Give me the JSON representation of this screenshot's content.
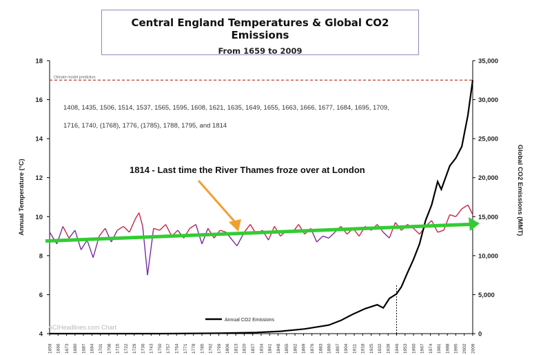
{
  "header": {
    "title": "Central England Temperatures & Global CO2 Emissions",
    "subtitle": "From 1659 to 2009"
  },
  "chart_data": {
    "type": "line",
    "title": "Central England Temperatures & Global CO2 Emissions",
    "subtitle": "From 1659 to 2009",
    "ylabel": "Annual Temperature (°C)",
    "y2label": "Global CO2 Emissions (MMT)",
    "ylim": [
      4,
      18
    ],
    "y2lim": [
      0,
      35000
    ],
    "yticks": [
      4,
      6,
      8,
      10,
      12,
      14,
      16,
      18
    ],
    "y2ticks": [
      "0",
      "5,000",
      "10,000",
      "15,000",
      "20,000",
      "25,000",
      "30,000",
      "35,000"
    ],
    "xlim": [
      1659,
      2009
    ],
    "xticks": [
      "1659",
      "1666",
      "1673",
      "1680",
      "1687",
      "1694",
      "1701",
      "1708",
      "1715",
      "1722",
      "1729",
      "1736",
      "1743",
      "1750",
      "1757",
      "1764",
      "1771",
      "1778",
      "1785",
      "1792",
      "1799",
      "1806",
      "1813",
      "1820",
      "1827",
      "1834",
      "1841",
      "1848",
      "1855",
      "1862",
      "1869",
      "1876",
      "1883",
      "1890",
      "1897",
      "1904",
      "1911",
      "1918",
      "1925",
      "1932",
      "1939",
      "1946",
      "1953",
      "1960",
      "1967",
      "1974",
      "1981",
      "1988",
      "1995",
      "2002",
      "2009"
    ],
    "annotations": {
      "model_line_label": "Climate model prediction",
      "model_line_value": 17.0,
      "freeze_years_line1": "1408, 1435, 1506, 1514, 1537, 1565, 1595, 1608, 1621, 1635, 1649, 1655, 1663, 1666, 1677, 1684, 1695, 1709,",
      "freeze_years_line2": "1716, 1740, (1768), 1776, (1785), 1788, 1795, and 1814",
      "thames_note": "1814 - Last time the River Thames froze over at London",
      "arrow_target_year": 1814,
      "marker_year": 1946,
      "watermark": "ACIHeadlines.com Chart"
    },
    "legend": {
      "placement": "bottom-center",
      "label": "Annual CO2 Emissions"
    },
    "trend": {
      "name": "",
      "x": [
        1659,
        2009
      ],
      "y": [
        8.75,
        9.65
      ],
      "color": "#33cc33"
    },
    "series": [
      {
        "name": "Annual CO2 Emissions",
        "axis": "right",
        "color": "#000000",
        "x": [
          1659,
          1750,
          1800,
          1830,
          1850,
          1870,
          1890,
          1900,
          1910,
          1920,
          1930,
          1935,
          1940,
          1944,
          1946,
          1950,
          1955,
          1960,
          1965,
          1970,
          1975,
          1980,
          1983,
          1990,
          1995,
          2000,
          2005,
          2009
        ],
        "y": [
          0,
          0,
          50,
          150,
          300,
          600,
          1100,
          1700,
          2500,
          3200,
          3700,
          3300,
          4500,
          4900,
          5100,
          6000,
          7800,
          9500,
          11500,
          14500,
          16500,
          19500,
          18500,
          21500,
          22500,
          24000,
          28000,
          32500
        ]
      },
      {
        "name": "",
        "axis": "left",
        "color": "#cc2244",
        "x": [
          1659,
          1665,
          1670,
          1675,
          1680,
          1685,
          1690,
          1695,
          1700,
          1705,
          1710,
          1715,
          1720,
          1725,
          1730,
          1733,
          1736,
          1740,
          1745,
          1750,
          1755,
          1760,
          1765,
          1770,
          1775,
          1780,
          1785,
          1790,
          1795,
          1800,
          1805,
          1810,
          1814,
          1820,
          1825,
          1830,
          1835,
          1840,
          1845,
          1850,
          1855,
          1860,
          1865,
          1870,
          1875,
          1880,
          1885,
          1890,
          1895,
          1900,
          1905,
          1910,
          1915,
          1920,
          1925,
          1930,
          1935,
          1940,
          1945,
          1950,
          1955,
          1960,
          1965,
          1970,
          1975,
          1980,
          1985,
          1990,
          1995,
          2000,
          2005,
          2009
        ],
        "y": [
          9.2,
          8.6,
          9.5,
          8.9,
          9.3,
          8.3,
          8.8,
          7.9,
          9.0,
          9.4,
          8.7,
          9.3,
          9.5,
          9.2,
          9.9,
          10.2,
          9.5,
          7.0,
          9.4,
          9.3,
          9.6,
          9.0,
          9.3,
          8.9,
          9.4,
          9.6,
          8.6,
          9.4,
          8.9,
          9.3,
          9.2,
          8.8,
          8.5,
          9.2,
          9.6,
          9.1,
          9.3,
          8.8,
          9.5,
          9.0,
          9.3,
          9.2,
          9.6,
          9.1,
          9.4,
          8.7,
          9.0,
          8.9,
          9.2,
          9.5,
          9.1,
          9.4,
          9.0,
          9.5,
          9.3,
          9.6,
          9.2,
          8.9,
          9.7,
          9.3,
          9.6,
          9.4,
          9.1,
          9.5,
          9.8,
          9.2,
          9.3,
          10.1,
          10.0,
          10.4,
          10.6,
          10.1
        ]
      }
    ],
    "grid": false
  }
}
